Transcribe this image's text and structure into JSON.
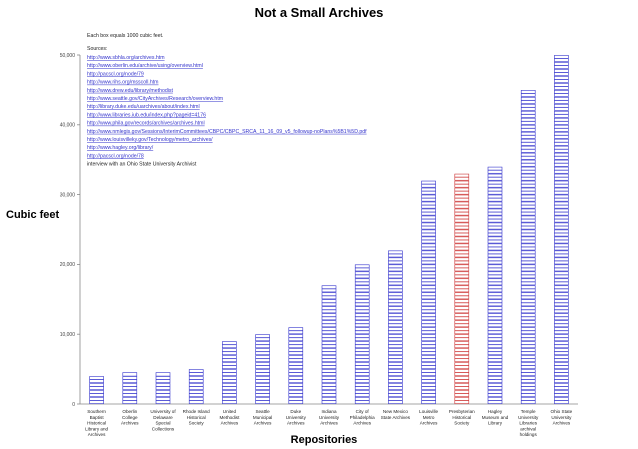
{
  "chart_data": {
    "type": "bar",
    "title": "Not a Small Archives",
    "xlabel": "Repositories",
    "ylabel": "Cubic feet",
    "ylim": [
      0,
      50000
    ],
    "yticks": [
      0,
      10000,
      20000,
      30000,
      40000,
      50000
    ],
    "ytick_labels": [
      "0",
      "10,000",
      "20,000",
      "30,000",
      "40,000",
      "50,000"
    ],
    "unit_note": "Each box equals 1000 cubic feet.",
    "sources_label": "Sources:",
    "sources": [
      "http://www.sbhla.org/archives.htm",
      "http://www.oberlin.edu/archive/using/overview.html",
      "http://pacscl.org/node/79",
      "http://www.rihs.org/msscoll.htm",
      "http://www.drew.edu/library/methodist",
      "http://www.seattle.gov/CityArchives/Research/overview.htm",
      "http://library.duke.edu/uarchives/about/index.html",
      "http://www.libraries.iub.edu/index.php?pageid=4176",
      "http://www.phila.gov/records/archives/archives.html",
      "http://www.nmlegis.gov/Sessions/InterimCommittees/CBPC/CBPC_SRCA_11_16_09_v5_followup-noPlans%5B1%5D.pdf",
      "http://www.louisvilleky.gov/Technology/metro_archives/",
      "http://www.hagley.org/library/",
      "http://pacscl.org/node/78"
    ],
    "note_after_sources": "interview with an Ohio State University Archivist",
    "categories": [
      "Southern Baptist Historical Library and Archives",
      "Oberlin College Archives",
      "University of Delaware Special Collections",
      "Rhode Island Historical Society",
      "United Methodist Archives",
      "Seattle Municipal Archives",
      "Duke University Archives",
      "Indiana University Archives",
      "City of Philadelphia Archives",
      "New Mexico State Archives",
      "Louisville Metro Archives",
      "Presbyterian Historical Society",
      "Hagley Museum and Library",
      "Temple University Libraries archival holdings",
      "Ohio State University Archives"
    ],
    "category_lines": [
      [
        "Southern",
        "Baptist",
        "Historical",
        "Library and",
        "Archives"
      ],
      [
        "Oberlin",
        "College",
        "Archives"
      ],
      [
        "University of",
        "Delaware",
        "Special",
        "Collections"
      ],
      [
        "Rhode Island",
        "Historical",
        "Society"
      ],
      [
        "United",
        "Methodist",
        "Archives"
      ],
      [
        "Seattle",
        "Municipal",
        "Archives"
      ],
      [
        "Duke",
        "University",
        "Archives"
      ],
      [
        "Indiana",
        "University",
        "Archives"
      ],
      [
        "City of",
        "Philadelphia",
        "Archives"
      ],
      [
        "New Mexico",
        "State Archives"
      ],
      [
        "Louisville",
        "Metro",
        "Archives"
      ],
      [
        "Presbyterian",
        "Historical",
        "Society"
      ],
      [
        "Hagley",
        "Museum and",
        "Library"
      ],
      [
        "Temple",
        "University",
        "Libraries",
        "archival",
        "holdings"
      ],
      [
        "Ohio State",
        "University",
        "Archives"
      ]
    ],
    "values": [
      4000,
      4500,
      4500,
      5000,
      9000,
      10000,
      11000,
      17000,
      20000,
      22000,
      32000,
      33000,
      34000,
      45000,
      50000
    ],
    "bar_colors": [
      "#3333cc",
      "#3333cc",
      "#3333cc",
      "#3333cc",
      "#3333cc",
      "#3333cc",
      "#3333cc",
      "#3333cc",
      "#3333cc",
      "#3333cc",
      "#3333cc",
      "#cc3333",
      "#3333cc",
      "#3333cc",
      "#3333cc"
    ],
    "grid": false,
    "legend": "none"
  }
}
